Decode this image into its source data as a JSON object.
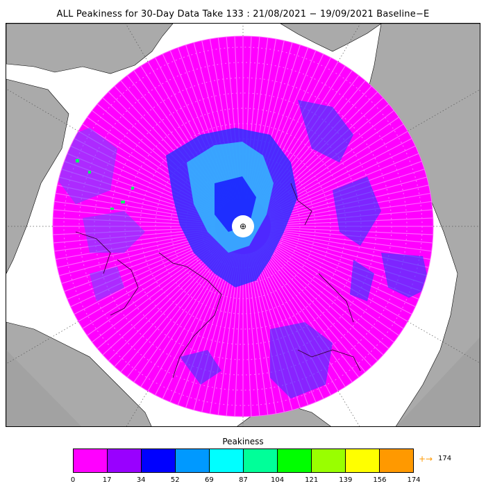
{
  "title": "ALL Peakiness for 30-Day Data Take 133 : 21/08/2021 − 19/09/2021 Baseline−E",
  "colorbar": {
    "label": "Peakiness",
    "ticks": [
      "0",
      "17",
      "34",
      "52",
      "69",
      "87",
      "104",
      "121",
      "139",
      "156",
      "174"
    ],
    "colors": [
      "#ff00ff",
      "#9900ff",
      "#0000ff",
      "#0099ff",
      "#00ffff",
      "#00ff99",
      "#00ff00",
      "#99ff00",
      "#ffff00",
      "#ff9900"
    ],
    "overflow_arrow": "+→",
    "overflow_label": "174"
  },
  "map": {
    "projection": "north polar stereographic",
    "background_color": "#ffffff",
    "land_color": "#aaaaaa",
    "dominant_color": "#ff00ff",
    "pole_hole_color": "#ffffff",
    "pole_marker": "⊕"
  }
}
